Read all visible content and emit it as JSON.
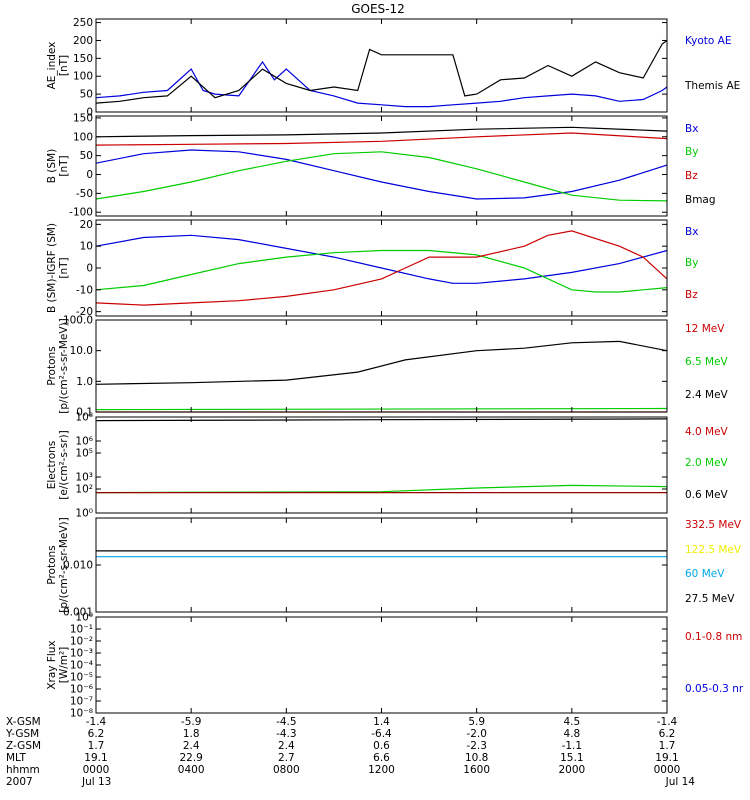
{
  "title": "GOES-12",
  "colors": {
    "black": "#000000",
    "blue": "#0000dd",
    "red": "#cc0000",
    "green": "#00cc00",
    "darkred": "#990000",
    "yellow": "#eeee00",
    "cyan": "#00a8e8"
  },
  "chart_data": [
    {
      "type": "line",
      "id": "ae",
      "log": false,
      "ylabel": [
        "AE_index",
        "[nT]"
      ],
      "ylim": [
        0,
        260
      ],
      "yticks": [
        0,
        50,
        100,
        150,
        200,
        250
      ],
      "ytick_labels": [
        "0",
        "50",
        "100",
        "150",
        "200",
        "250"
      ],
      "legend": [
        {
          "name": "Kyoto AE",
          "color": "blue"
        },
        {
          "name": "Themis AE",
          "color": "black"
        }
      ],
      "series": [
        {
          "name": "Kyoto AE",
          "color": "blue",
          "x": [
            0,
            1,
            2,
            3,
            4,
            4.5,
            5,
            6,
            7,
            7.5,
            8,
            9,
            10,
            11,
            12,
            13,
            14,
            15,
            16,
            17,
            18,
            19,
            20,
            21,
            22,
            23,
            23.8,
            24
          ],
          "y": [
            40,
            45,
            55,
            60,
            120,
            60,
            50,
            45,
            140,
            90,
            120,
            60,
            45,
            25,
            20,
            15,
            15,
            20,
            25,
            30,
            40,
            45,
            50,
            45,
            30,
            35,
            60,
            70
          ]
        },
        {
          "name": "Themis AE",
          "color": "black",
          "x": [
            0,
            1,
            2,
            3,
            4,
            5,
            6,
            7,
            8,
            9,
            10,
            11,
            11.5,
            12,
            13,
            14,
            15,
            15.5,
            16,
            17,
            18,
            19,
            20,
            21,
            22,
            23,
            23.8,
            24
          ],
          "y": [
            25,
            30,
            40,
            45,
            100,
            40,
            60,
            120,
            80,
            60,
            70,
            60,
            175,
            160,
            160,
            160,
            160,
            45,
            50,
            90,
            95,
            130,
            100,
            140,
            110,
            95,
            190,
            200
          ]
        }
      ]
    },
    {
      "type": "line",
      "id": "bsm",
      "log": false,
      "ylabel": [
        "B (SM)",
        "[nT]"
      ],
      "ylim": [
        -110,
        155
      ],
      "yticks": [
        -100,
        -50,
        0,
        50,
        100,
        150
      ],
      "ytick_labels": [
        "-100",
        "-50",
        "0",
        "50",
        "100",
        "150"
      ],
      "legend": [
        {
          "name": "Bx",
          "color": "blue"
        },
        {
          "name": "By",
          "color": "green"
        },
        {
          "name": "Bz",
          "color": "red"
        },
        {
          "name": "Bmag",
          "color": "black"
        }
      ],
      "series": [
        {
          "name": "Bmag",
          "color": "black",
          "x": [
            0,
            4,
            8,
            12,
            16,
            20,
            24
          ],
          "y": [
            100,
            103,
            105,
            110,
            120,
            125,
            115
          ]
        },
        {
          "name": "Bz",
          "color": "red",
          "x": [
            0,
            4,
            8,
            12,
            16,
            20,
            24
          ],
          "y": [
            78,
            80,
            82,
            88,
            100,
            110,
            95
          ]
        },
        {
          "name": "Bx",
          "color": "blue",
          "x": [
            0,
            2,
            4,
            6,
            8,
            10,
            12,
            14,
            16,
            18,
            20,
            22,
            24
          ],
          "y": [
            30,
            55,
            65,
            60,
            40,
            10,
            -20,
            -45,
            -65,
            -62,
            -45,
            -15,
            25
          ]
        },
        {
          "name": "By",
          "color": "green",
          "x": [
            0,
            2,
            4,
            6,
            8,
            10,
            12,
            14,
            16,
            18,
            20,
            22,
            24
          ],
          "y": [
            -65,
            -45,
            -20,
            10,
            35,
            55,
            60,
            45,
            15,
            -20,
            -55,
            -68,
            -70
          ]
        }
      ]
    },
    {
      "type": "line",
      "id": "bdiff",
      "log": false,
      "ylabel": [
        "B (SM)-IGRF (SM)",
        "[nT]"
      ],
      "ylim": [
        -22,
        22
      ],
      "yticks": [
        -20,
        -10,
        0,
        10,
        20
      ],
      "ytick_labels": [
        "-20",
        "-10",
        "0",
        "10",
        "20"
      ],
      "legend": [
        {
          "name": "Bx",
          "color": "blue"
        },
        {
          "name": "By",
          "color": "green"
        },
        {
          "name": "Bz",
          "color": "red"
        }
      ],
      "series": [
        {
          "name": "Bx",
          "color": "blue",
          "x": [
            0,
            2,
            4,
            6,
            8,
            10,
            12,
            14,
            15,
            16,
            17,
            18,
            20,
            22,
            24
          ],
          "y": [
            10,
            14,
            15,
            13,
            9,
            5,
            0,
            -5,
            -7,
            -7,
            -6,
            -5,
            -2,
            2,
            8
          ]
        },
        {
          "name": "By",
          "color": "green",
          "x": [
            0,
            2,
            4,
            6,
            8,
            10,
            12,
            14,
            16,
            18,
            20,
            21,
            22,
            23,
            24
          ],
          "y": [
            -10,
            -8,
            -3,
            2,
            5,
            7,
            8,
            8,
            6,
            0,
            -10,
            -11,
            -11,
            -10,
            -9
          ]
        },
        {
          "name": "Bz",
          "color": "red",
          "x": [
            0,
            2,
            4,
            6,
            8,
            10,
            12,
            13,
            14,
            16,
            18,
            19,
            20,
            22,
            23,
            24
          ],
          "y": [
            -16,
            -17,
            -16,
            -15,
            -13,
            -10,
            -5,
            0,
            5,
            5,
            10,
            15,
            17,
            10,
            5,
            -5
          ]
        }
      ]
    },
    {
      "type": "line",
      "id": "protons1",
      "log": true,
      "ylabel": [
        "Protons",
        "[p/(cm²-s-sr-MeV)]"
      ],
      "ylim": [
        0.1,
        100
      ],
      "yticks": [
        0.1,
        1,
        10,
        100
      ],
      "ytick_labels": [
        "0.1",
        "1.0",
        "10.0",
        "100.0"
      ],
      "legend": [
        {
          "name": "12 MeV",
          "color": "red"
        },
        {
          "name": "6.5 MeV",
          "color": "green"
        },
        {
          "name": "2.4 MeV",
          "color": "black"
        }
      ],
      "series": [
        {
          "name": "2.4 MeV",
          "color": "black",
          "x": [
            0,
            4,
            8,
            11,
            13,
            16,
            18,
            20,
            22,
            24
          ],
          "y": [
            0.8,
            0.9,
            1.1,
            2.0,
            5.0,
            10,
            12,
            18,
            20,
            10
          ]
        },
        {
          "name": "6.5 MeV",
          "color": "green",
          "x": [
            0,
            24
          ],
          "y": [
            0.12,
            0.13
          ]
        },
        {
          "name": "12 MeV",
          "color": "red",
          "x": [
            0,
            24
          ],
          "y": [
            0.1,
            0.1
          ]
        }
      ]
    },
    {
      "type": "line",
      "id": "electrons",
      "log": true,
      "ylabel": [
        "Electrons",
        "[e/(cm²-s-sr)]"
      ],
      "ylim": [
        1,
        100000000
      ],
      "yticks": [
        1,
        100,
        1000,
        100000,
        1000000,
        100000000
      ],
      "ytick_labels": [
        "10⁰",
        "10²",
        "10³",
        "10⁵",
        "10⁶",
        "10⁸"
      ],
      "legend": [
        {
          "name": "4.0 MeV",
          "color": "red"
        },
        {
          "name": "2.0 MeV",
          "color": "green"
        },
        {
          "name": "0.6 MeV",
          "color": "black"
        }
      ],
      "series": [
        {
          "name": "0.6 MeV",
          "color": "black",
          "x": [
            0,
            12,
            24
          ],
          "y": [
            50000000,
            60000000,
            70000000
          ]
        },
        {
          "name": "2.0 MeV",
          "color": "green",
          "x": [
            0,
            12,
            16,
            20,
            24
          ],
          "y": [
            50,
            60,
            120,
            200,
            160
          ]
        },
        {
          "name": "4.0 MeV",
          "color": "darkred",
          "x": [
            0,
            24
          ],
          "y": [
            50,
            50
          ]
        }
      ]
    },
    {
      "type": "line",
      "id": "protons2",
      "log": true,
      "ylabel": [
        "Protons",
        "[p/(cm²-s-sr-MeV)]"
      ],
      "ylim": [
        0.001,
        0.1
      ],
      "yticks": [
        0.001,
        0.01
      ],
      "ytick_labels": [
        "0.001",
        "0.010"
      ],
      "legend": [
        {
          "name": "332.5 MeV",
          "color": "red"
        },
        {
          "name": "122.5 MeV",
          "color": "yellow"
        },
        {
          "name": "60 MeV",
          "color": "cyan"
        },
        {
          "name": "27.5 MeV",
          "color": "black"
        }
      ],
      "series": [
        {
          "name": "27.5 MeV",
          "color": "black",
          "x": [
            0,
            24
          ],
          "y": [
            0.02,
            0.02
          ]
        },
        {
          "name": "60 MeV",
          "color": "cyan",
          "x": [
            0,
            24
          ],
          "y": [
            0.015,
            0.015
          ]
        }
      ]
    },
    {
      "type": "line",
      "id": "xray",
      "log": true,
      "ylabel": [
        "Xray Flux",
        "[W/m²]"
      ],
      "ylim": [
        1e-08,
        1
      ],
      "yticks": [
        1e-08,
        1e-07,
        1e-06,
        1e-05,
        0.0001,
        0.001,
        0.01,
        0.1,
        1
      ],
      "ytick_labels": [
        "10⁻⁸",
        "10⁻⁷",
        "10⁻⁶",
        "10⁻⁵",
        "10⁻⁴",
        "10⁻³",
        "10⁻²",
        "10⁻¹",
        "10⁰"
      ],
      "legend": [
        {
          "name": "0.1-0.8 nm",
          "color": "red"
        },
        {
          "name": "0.05-0.3 nr",
          "color": "blue"
        }
      ],
      "series": []
    }
  ],
  "xaxis": {
    "xlim": [
      0,
      24
    ],
    "row_labels": [
      "X-GSM",
      "Y-GSM",
      "Z-GSM",
      "MLT",
      "hhmm",
      "2007"
    ],
    "columns": [
      {
        "x": 0,
        "values": [
          "-1.4",
          "6.2",
          "1.7",
          "19.1",
          "0000",
          "Jul 13"
        ]
      },
      {
        "x": 4,
        "values": [
          "-5.9",
          "1.8",
          "2.4",
          "22.9",
          "0400",
          ""
        ]
      },
      {
        "x": 8,
        "values": [
          "-4.5",
          "-4.3",
          "2.4",
          "2.7",
          "0800",
          ""
        ]
      },
      {
        "x": 12,
        "values": [
          "1.4",
          "-6.4",
          "0.6",
          "6.6",
          "1200",
          ""
        ]
      },
      {
        "x": 16,
        "values": [
          "5.9",
          "-2.0",
          "-2.3",
          "10.8",
          "1600",
          ""
        ]
      },
      {
        "x": 20,
        "values": [
          "4.5",
          "4.8",
          "-1.1",
          "15.1",
          "2000",
          ""
        ]
      },
      {
        "x": 24,
        "values": [
          "-1.4",
          "6.2",
          "1.7",
          "19.1",
          "0000",
          "Jul 14"
        ]
      }
    ]
  }
}
